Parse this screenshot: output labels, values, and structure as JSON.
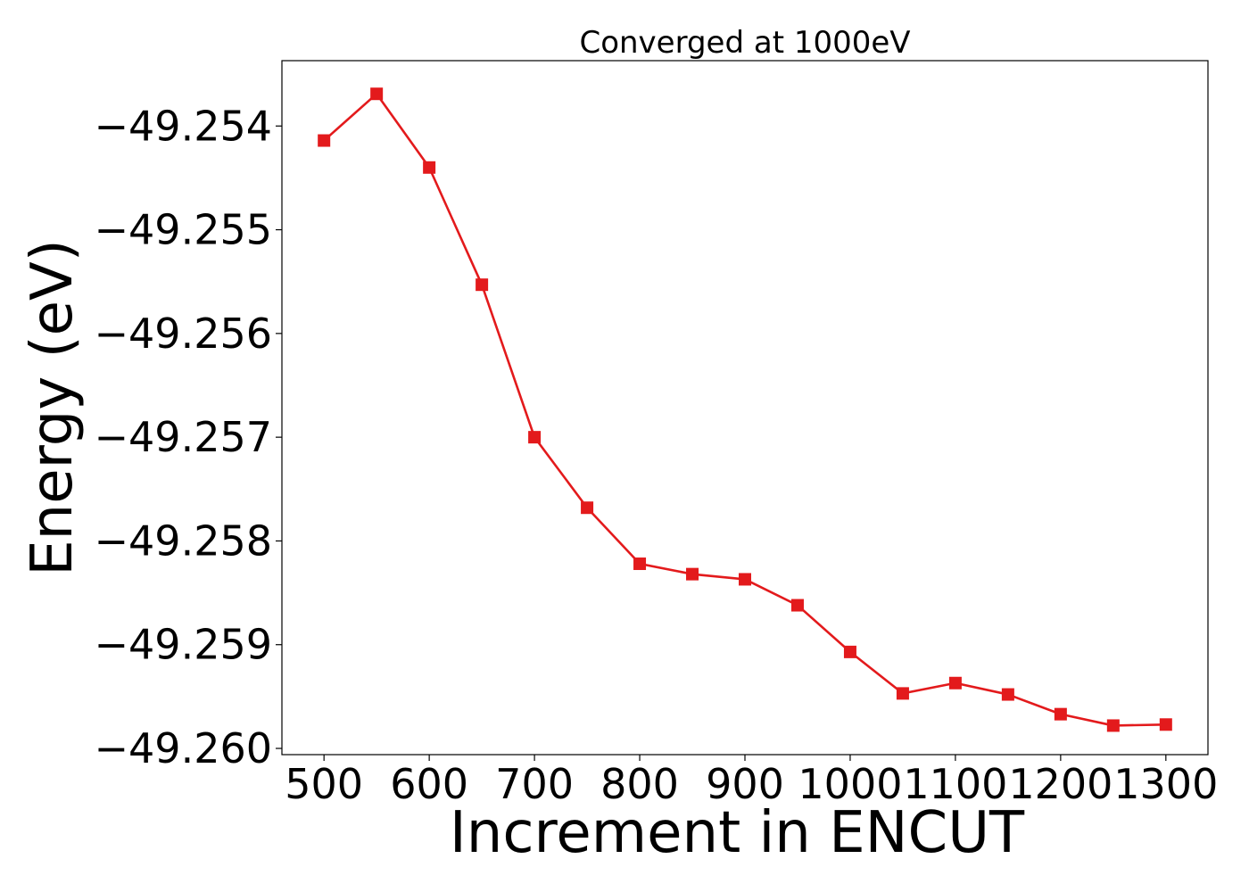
{
  "chart_data": {
    "type": "line",
    "title": "Converged at 1000eV",
    "xlabel": "Increment in ENCUT",
    "ylabel": "Energy (eV)",
    "xlim": [
      460,
      1340
    ],
    "ylim": [
      -49.26006,
      -49.25337
    ],
    "xticks": [
      500,
      600,
      700,
      800,
      900,
      1000,
      1100,
      1200,
      1300
    ],
    "xtick_labels": [
      "500",
      "600",
      "700",
      "800",
      "900",
      "1000",
      "1100",
      "1200",
      "1300"
    ],
    "yticks": [
      -49.254,
      -49.255,
      -49.256,
      -49.257,
      -49.258,
      -49.259,
      -49.26
    ],
    "ytick_labels": [
      "−49.254",
      "−49.255",
      "−49.256",
      "−49.257",
      "−49.258",
      "−49.259",
      "−49.260"
    ],
    "grid": false,
    "legend": "none",
    "series": [
      {
        "color": "#e31a1c",
        "marker": "square",
        "x": [
          500,
          550,
          600,
          650,
          700,
          750,
          800,
          850,
          900,
          950,
          1000,
          1050,
          1100,
          1150,
          1200,
          1250,
          1300
        ],
        "y": [
          -49.25414,
          -49.25369,
          -49.2544,
          -49.25553,
          -49.257,
          -49.25768,
          -49.25822,
          -49.25832,
          -49.25837,
          -49.25862,
          -49.25907,
          -49.25947,
          -49.25937,
          -49.25948,
          -49.25967,
          -49.25978,
          -49.25977
        ]
      }
    ]
  }
}
